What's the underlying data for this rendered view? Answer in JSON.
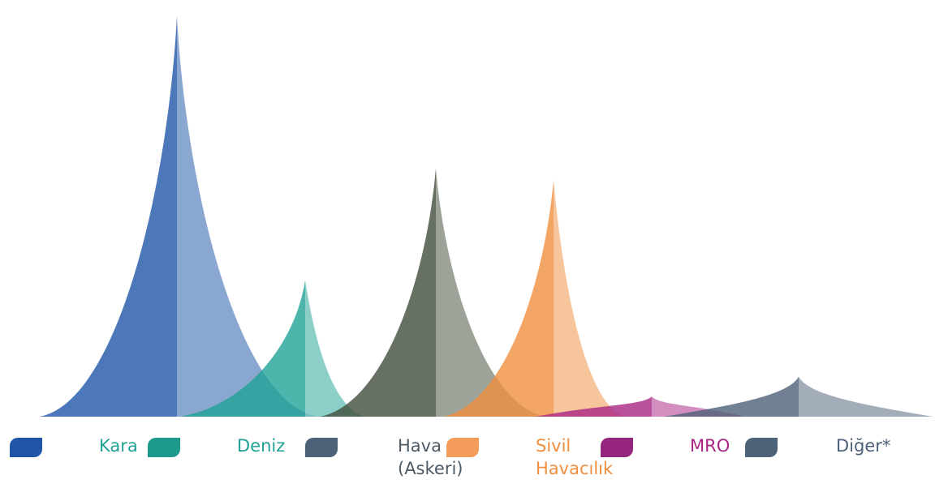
{
  "chart_data": {
    "type": "area",
    "title": "",
    "xlabel": "",
    "ylabel": "",
    "series": [
      {
        "name": "Kara",
        "peak": 100,
        "color": "#1f56a8"
      },
      {
        "name": "Deniz",
        "peak": 34,
        "color": "#21a296"
      },
      {
        "name": "Hava (Askeri)",
        "peak": 62,
        "color": "#414e3c"
      },
      {
        "name": "Sivil Havacılık",
        "peak": 59,
        "color": "#ef8f3f"
      },
      {
        "name": "MRO",
        "peak": 5,
        "color": "#a82684"
      },
      {
        "name": "Diğer*",
        "peak": 10,
        "color": "#4d6178"
      }
    ],
    "legend": [
      {
        "label": "Kara",
        "color": "#21a296",
        "swatch": "#1f56a8"
      },
      {
        "label": "Deniz",
        "color": "#21a296",
        "swatch": "#1e9a8c"
      },
      {
        "label": "Hava\n(Askeri)",
        "color": "#4d5a66",
        "swatch": "#4d6178"
      },
      {
        "label": "Sivil\nHavacılık",
        "color": "#ef8f3f",
        "swatch": "#f49d5a"
      },
      {
        "label": "MRO",
        "color": "#a82684",
        "swatch": "#962580"
      },
      {
        "label": "Diğer*",
        "color": "#4d6178",
        "swatch": "#4d6178"
      }
    ]
  }
}
